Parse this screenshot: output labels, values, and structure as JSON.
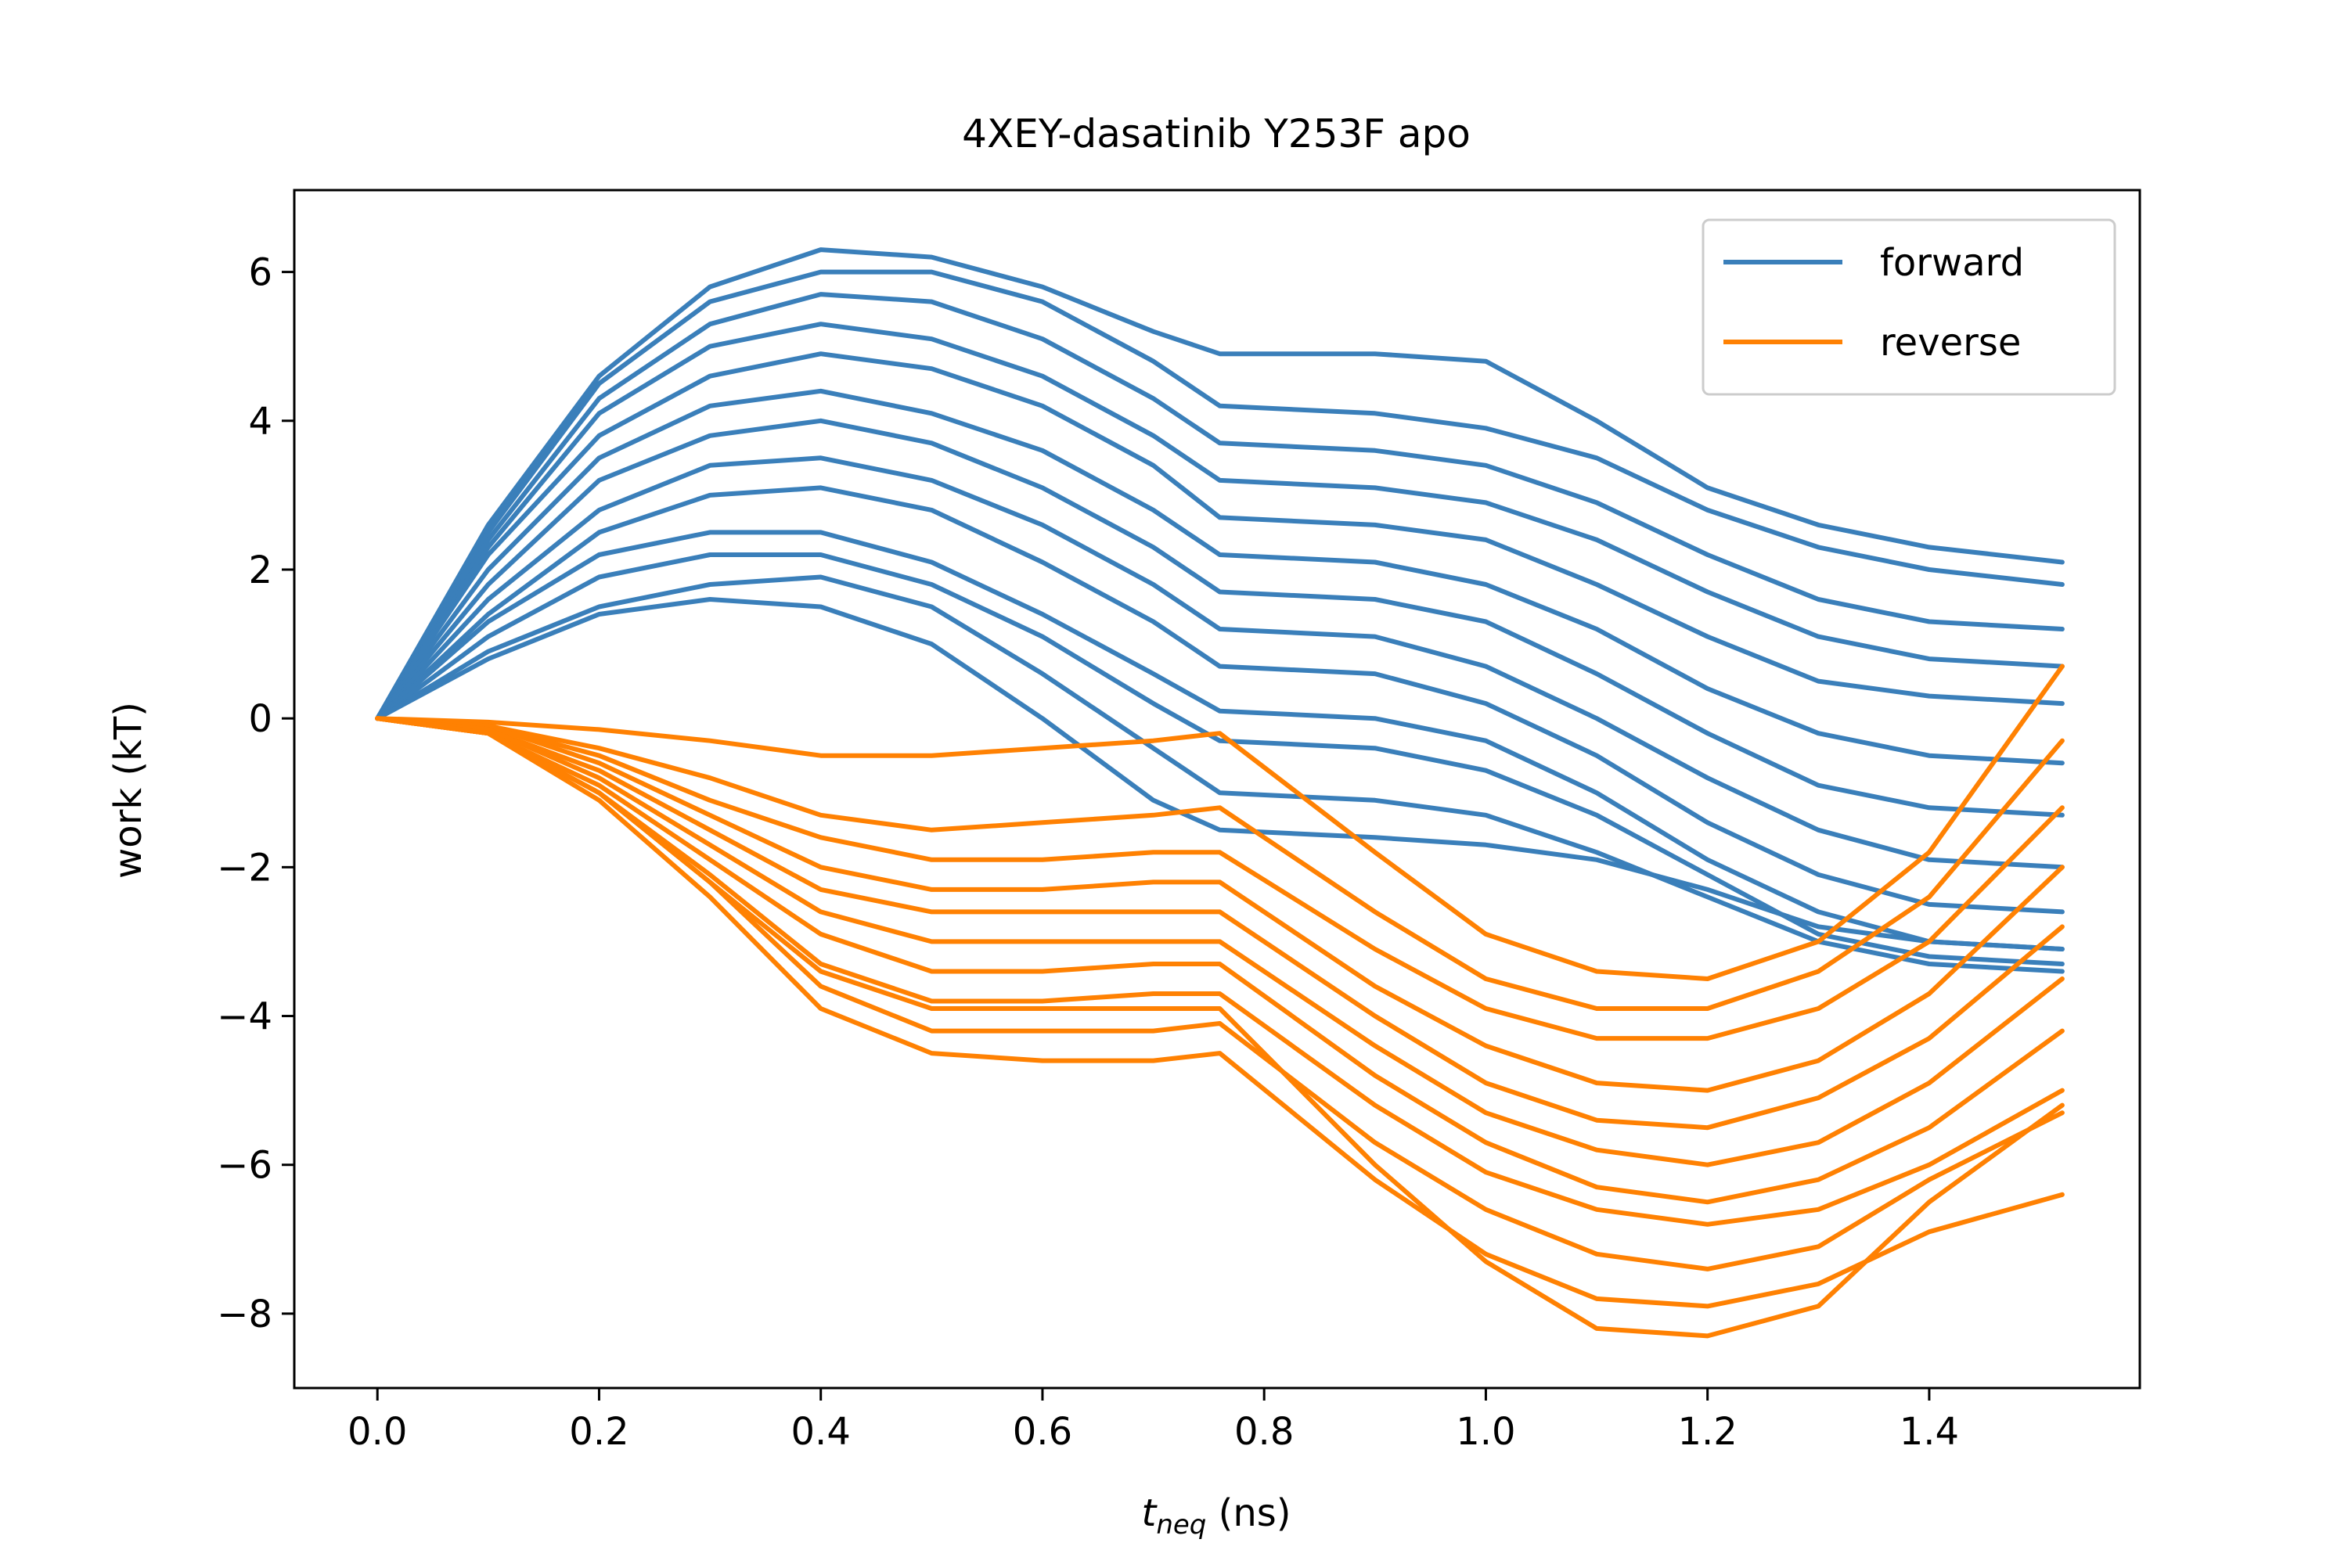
{
  "chart_data": {
    "type": "line",
    "title": "4XEY-dasatinib Y253F apo",
    "xlabel_main": "t",
    "xlabel_sub": "neq",
    "xlabel_unit": " (ns)",
    "ylabel": "work (kT)",
    "xlim": [
      -0.075,
      1.59
    ],
    "ylim": [
      -9.0,
      7.1
    ],
    "xticks": [
      {
        "value": 0.0,
        "label": "0.0"
      },
      {
        "value": 0.2,
        "label": "0.2"
      },
      {
        "value": 0.4,
        "label": "0.4"
      },
      {
        "value": 0.6,
        "label": "0.6"
      },
      {
        "value": 0.8,
        "label": "0.8"
      },
      {
        "value": 1.0,
        "label": "1.0"
      },
      {
        "value": 1.2,
        "label": "1.2"
      },
      {
        "value": 1.4,
        "label": "1.4"
      }
    ],
    "yticks": [
      {
        "value": 6,
        "label": "6"
      },
      {
        "value": 4,
        "label": "4"
      },
      {
        "value": 2,
        "label": "2"
      },
      {
        "value": 0,
        "label": "0"
      },
      {
        "value": -2,
        "label": "−2"
      },
      {
        "value": -4,
        "label": "−4"
      },
      {
        "value": -6,
        "label": "−6"
      },
      {
        "value": -8,
        "label": "−8"
      }
    ],
    "legend": {
      "position": "top-right",
      "entries": [
        {
          "name": "forward",
          "color": "#3a7fba"
        },
        {
          "name": "reverse",
          "color": "#ff8102"
        }
      ]
    },
    "series": [
      {
        "name": "forward",
        "color": "#3a7fba",
        "lines": [
          {
            "x": [
              0,
              0.1,
              0.2,
              0.3,
              0.4,
              0.5,
              0.6,
              0.7,
              0.76,
              0.9,
              1.0,
              1.1,
              1.2,
              1.3,
              1.4,
              1.52
            ],
            "y": [
              0,
              2.6,
              4.6,
              5.8,
              6.3,
              6.2,
              5.8,
              5.2,
              4.9,
              4.9,
              4.8,
              4.0,
              3.1,
              2.6,
              2.3,
              2.1
            ]
          },
          {
            "x": [
              0,
              0.1,
              0.2,
              0.3,
              0.4,
              0.5,
              0.6,
              0.7,
              0.76,
              0.9,
              1.0,
              1.1,
              1.2,
              1.3,
              1.4,
              1.52
            ],
            "y": [
              0,
              2.5,
              4.5,
              5.6,
              6.0,
              6.0,
              5.6,
              4.8,
              4.2,
              4.1,
              3.9,
              3.5,
              2.8,
              2.3,
              2.0,
              1.8
            ]
          },
          {
            "x": [
              0,
              0.1,
              0.2,
              0.3,
              0.4,
              0.5,
              0.6,
              0.7,
              0.76,
              0.9,
              1.0,
              1.1,
              1.2,
              1.3,
              1.4,
              1.52
            ],
            "y": [
              0,
              2.4,
              4.3,
              5.3,
              5.7,
              5.6,
              5.1,
              4.3,
              3.7,
              3.6,
              3.4,
              2.9,
              2.2,
              1.6,
              1.3,
              1.2
            ]
          },
          {
            "x": [
              0,
              0.1,
              0.2,
              0.3,
              0.4,
              0.5,
              0.6,
              0.7,
              0.76,
              0.9,
              1.0,
              1.1,
              1.2,
              1.3,
              1.4,
              1.52
            ],
            "y": [
              0,
              2.3,
              4.1,
              5.0,
              5.3,
              5.1,
              4.6,
              3.8,
              3.2,
              3.1,
              2.9,
              2.4,
              1.7,
              1.1,
              0.8,
              0.7
            ]
          },
          {
            "x": [
              0,
              0.1,
              0.2,
              0.3,
              0.4,
              0.5,
              0.6,
              0.7,
              0.76,
              0.9,
              1.0,
              1.1,
              1.2,
              1.3,
              1.4,
              1.52
            ],
            "y": [
              0,
              2.2,
              3.8,
              4.6,
              4.9,
              4.7,
              4.2,
              3.4,
              2.7,
              2.6,
              2.4,
              1.8,
              1.1,
              0.5,
              0.3,
              0.2
            ]
          },
          {
            "x": [
              0,
              0.1,
              0.2,
              0.3,
              0.4,
              0.5,
              0.6,
              0.7,
              0.76,
              0.9,
              1.0,
              1.1,
              1.2,
              1.3,
              1.4,
              1.52
            ],
            "y": [
              0,
              2.0,
              3.5,
              4.2,
              4.4,
              4.1,
              3.6,
              2.8,
              2.2,
              2.1,
              1.8,
              1.2,
              0.4,
              -0.2,
              -0.5,
              -0.6
            ]
          },
          {
            "x": [
              0,
              0.1,
              0.2,
              0.3,
              0.4,
              0.5,
              0.6,
              0.7,
              0.76,
              0.9,
              1.0,
              1.1,
              1.2,
              1.3,
              1.4,
              1.52
            ],
            "y": [
              0,
              1.8,
              3.2,
              3.8,
              4.0,
              3.7,
              3.1,
              2.3,
              1.7,
              1.6,
              1.3,
              0.6,
              -0.2,
              -0.9,
              -1.2,
              -1.3
            ]
          },
          {
            "x": [
              0,
              0.1,
              0.2,
              0.3,
              0.4,
              0.5,
              0.6,
              0.7,
              0.76,
              0.9,
              1.0,
              1.1,
              1.2,
              1.3,
              1.4,
              1.52
            ],
            "y": [
              0,
              1.6,
              2.8,
              3.4,
              3.5,
              3.2,
              2.6,
              1.8,
              1.2,
              1.1,
              0.7,
              0.0,
              -0.8,
              -1.5,
              -1.9,
              -2.0
            ]
          },
          {
            "x": [
              0,
              0.1,
              0.2,
              0.3,
              0.4,
              0.5,
              0.6,
              0.7,
              0.76,
              0.9,
              1.0,
              1.1,
              1.2,
              1.3,
              1.4,
              1.52
            ],
            "y": [
              0,
              1.4,
              2.5,
              3.0,
              3.1,
              2.8,
              2.1,
              1.3,
              0.7,
              0.6,
              0.2,
              -0.5,
              -1.4,
              -2.1,
              -2.5,
              -2.6
            ]
          },
          {
            "x": [
              0,
              0.1,
              0.2,
              0.3,
              0.4,
              0.5,
              0.6,
              0.7,
              0.76,
              0.9,
              1.0,
              1.1,
              1.2,
              1.3,
              1.4,
              1.52
            ],
            "y": [
              0,
              1.3,
              2.2,
              2.5,
              2.5,
              2.1,
              1.4,
              0.6,
              0.1,
              0.0,
              -0.3,
              -1.0,
              -1.9,
              -2.6,
              -3.0,
              -3.1
            ]
          },
          {
            "x": [
              0,
              0.1,
              0.2,
              0.3,
              0.4,
              0.5,
              0.6,
              0.7,
              0.76,
              0.9,
              1.0,
              1.1,
              1.2,
              1.3,
              1.4,
              1.52
            ],
            "y": [
              0,
              1.1,
              1.9,
              2.2,
              2.2,
              1.8,
              1.1,
              0.2,
              -0.3,
              -0.4,
              -0.7,
              -1.3,
              -2.1,
              -2.9,
              -3.2,
              -3.3
            ]
          },
          {
            "x": [
              0,
              0.1,
              0.2,
              0.3,
              0.4,
              0.5,
              0.6,
              0.7,
              0.76,
              0.9,
              1.0,
              1.1,
              1.2,
              1.3,
              1.4,
              1.52
            ],
            "y": [
              0,
              0.9,
              1.5,
              1.8,
              1.9,
              1.5,
              0.6,
              -0.4,
              -1.0,
              -1.1,
              -1.3,
              -1.8,
              -2.4,
              -3.0,
              -3.3,
              -3.4
            ]
          },
          {
            "x": [
              0,
              0.1,
              0.2,
              0.3,
              0.4,
              0.5,
              0.6,
              0.7,
              0.76,
              0.9,
              1.0,
              1.1,
              1.2,
              1.3,
              1.4,
              1.52
            ],
            "y": [
              0,
              0.8,
              1.4,
              1.6,
              1.5,
              1.0,
              0.0,
              -1.1,
              -1.5,
              -1.6,
              -1.7,
              -1.9,
              -2.3,
              -2.8,
              -3.0,
              -3.1
            ]
          }
        ]
      },
      {
        "name": "reverse",
        "color": "#ff8102",
        "lines": [
          {
            "x": [
              0,
              0.1,
              0.2,
              0.3,
              0.4,
              0.5,
              0.6,
              0.7,
              0.76,
              0.9,
              1.0,
              1.1,
              1.2,
              1.3,
              1.4,
              1.52
            ],
            "y": [
              0,
              -0.05,
              -0.15,
              -0.3,
              -0.5,
              -0.5,
              -0.4,
              -0.3,
              -0.2,
              -1.8,
              -2.9,
              -3.4,
              -3.5,
              -3.0,
              -1.8,
              0.7
            ]
          },
          {
            "x": [
              0,
              0.1,
              0.2,
              0.3,
              0.4,
              0.5,
              0.6,
              0.7,
              0.76,
              0.9,
              1.0,
              1.1,
              1.2,
              1.3,
              1.4,
              1.52
            ],
            "y": [
              0,
              -0.1,
              -0.4,
              -0.8,
              -1.3,
              -1.5,
              -1.4,
              -1.3,
              -1.2,
              -2.6,
              -3.5,
              -3.9,
              -3.9,
              -3.4,
              -2.4,
              -0.3
            ]
          },
          {
            "x": [
              0,
              0.1,
              0.2,
              0.3,
              0.4,
              0.5,
              0.6,
              0.7,
              0.76,
              0.9,
              1.0,
              1.1,
              1.2,
              1.3,
              1.4,
              1.52
            ],
            "y": [
              0,
              -0.1,
              -0.5,
              -1.1,
              -1.6,
              -1.9,
              -1.9,
              -1.8,
              -1.8,
              -3.1,
              -3.9,
              -4.3,
              -4.3,
              -3.9,
              -3.0,
              -1.2
            ]
          },
          {
            "x": [
              0,
              0.1,
              0.2,
              0.3,
              0.4,
              0.5,
              0.6,
              0.7,
              0.76,
              0.9,
              1.0,
              1.1,
              1.2,
              1.3,
              1.4,
              1.52
            ],
            "y": [
              0,
              -0.1,
              -0.6,
              -1.3,
              -2.0,
              -2.3,
              -2.3,
              -2.2,
              -2.2,
              -3.6,
              -4.4,
              -4.9,
              -5.0,
              -4.6,
              -3.7,
              -2.0
            ]
          },
          {
            "x": [
              0,
              0.1,
              0.2,
              0.3,
              0.4,
              0.5,
              0.6,
              0.7,
              0.76,
              0.9,
              1.0,
              1.1,
              1.2,
              1.3,
              1.4,
              1.52
            ],
            "y": [
              0,
              -0.15,
              -0.7,
              -1.5,
              -2.3,
              -2.6,
              -2.6,
              -2.6,
              -2.6,
              -4.0,
              -4.9,
              -5.4,
              -5.5,
              -5.1,
              -4.3,
              -2.8
            ]
          },
          {
            "x": [
              0,
              0.1,
              0.2,
              0.3,
              0.4,
              0.5,
              0.6,
              0.7,
              0.76,
              0.9,
              1.0,
              1.1,
              1.2,
              1.3,
              1.4,
              1.52
            ],
            "y": [
              0,
              -0.15,
              -0.8,
              -1.7,
              -2.6,
              -3.0,
              -3.0,
              -3.0,
              -3.0,
              -4.4,
              -5.3,
              -5.8,
              -6.0,
              -5.7,
              -4.9,
              -3.5
            ]
          },
          {
            "x": [
              0,
              0.1,
              0.2,
              0.3,
              0.4,
              0.5,
              0.6,
              0.7,
              0.76,
              0.9,
              1.0,
              1.1,
              1.2,
              1.3,
              1.4,
              1.52
            ],
            "y": [
              0,
              -0.2,
              -0.9,
              -1.9,
              -2.9,
              -3.4,
              -3.4,
              -3.3,
              -3.3,
              -4.8,
              -5.7,
              -6.3,
              -6.5,
              -6.2,
              -5.5,
              -4.2
            ]
          },
          {
            "x": [
              0,
              0.1,
              0.2,
              0.3,
              0.4,
              0.5,
              0.6,
              0.7,
              0.76,
              0.9,
              1.0,
              1.1,
              1.2,
              1.3,
              1.4,
              1.52
            ],
            "y": [
              0,
              -0.2,
              -1.0,
              -2.1,
              -3.3,
              -3.8,
              -3.8,
              -3.7,
              -3.7,
              -5.2,
              -6.1,
              -6.6,
              -6.8,
              -6.6,
              -6.0,
              -5.0
            ]
          },
          {
            "x": [
              0,
              0.1,
              0.2,
              0.3,
              0.4,
              0.5,
              0.6,
              0.7,
              0.76,
              0.9,
              1.0,
              1.1,
              1.2,
              1.3,
              1.4,
              1.52
            ],
            "y": [
              0,
              -0.2,
              -1.0,
              -2.2,
              -3.6,
              -4.2,
              -4.2,
              -4.2,
              -4.1,
              -5.7,
              -6.6,
              -7.2,
              -7.4,
              -7.1,
              -6.2,
              -5.3
            ]
          },
          {
            "x": [
              0,
              0.1,
              0.2,
              0.3,
              0.4,
              0.5,
              0.6,
              0.7,
              0.76,
              0.9,
              1.0,
              1.1,
              1.2,
              1.3,
              1.4,
              1.52
            ],
            "y": [
              0,
              -0.2,
              -1.1,
              -2.4,
              -3.9,
              -4.5,
              -4.6,
              -4.6,
              -4.5,
              -6.2,
              -7.2,
              -7.8,
              -7.9,
              -7.6,
              -6.9,
              -6.4
            ]
          },
          {
            "x": [
              0,
              0.1,
              0.2,
              0.3,
              0.4,
              0.5,
              0.6,
              0.7,
              0.76,
              0.9,
              1.0,
              1.1,
              1.2,
              1.3,
              1.4,
              1.52
            ],
            "y": [
              0,
              -0.2,
              -1.0,
              -2.2,
              -3.4,
              -3.9,
              -3.9,
              -3.9,
              -3.9,
              -6.0,
              -7.3,
              -8.2,
              -8.3,
              -7.9,
              -6.5,
              -5.2
            ]
          }
        ]
      }
    ]
  }
}
